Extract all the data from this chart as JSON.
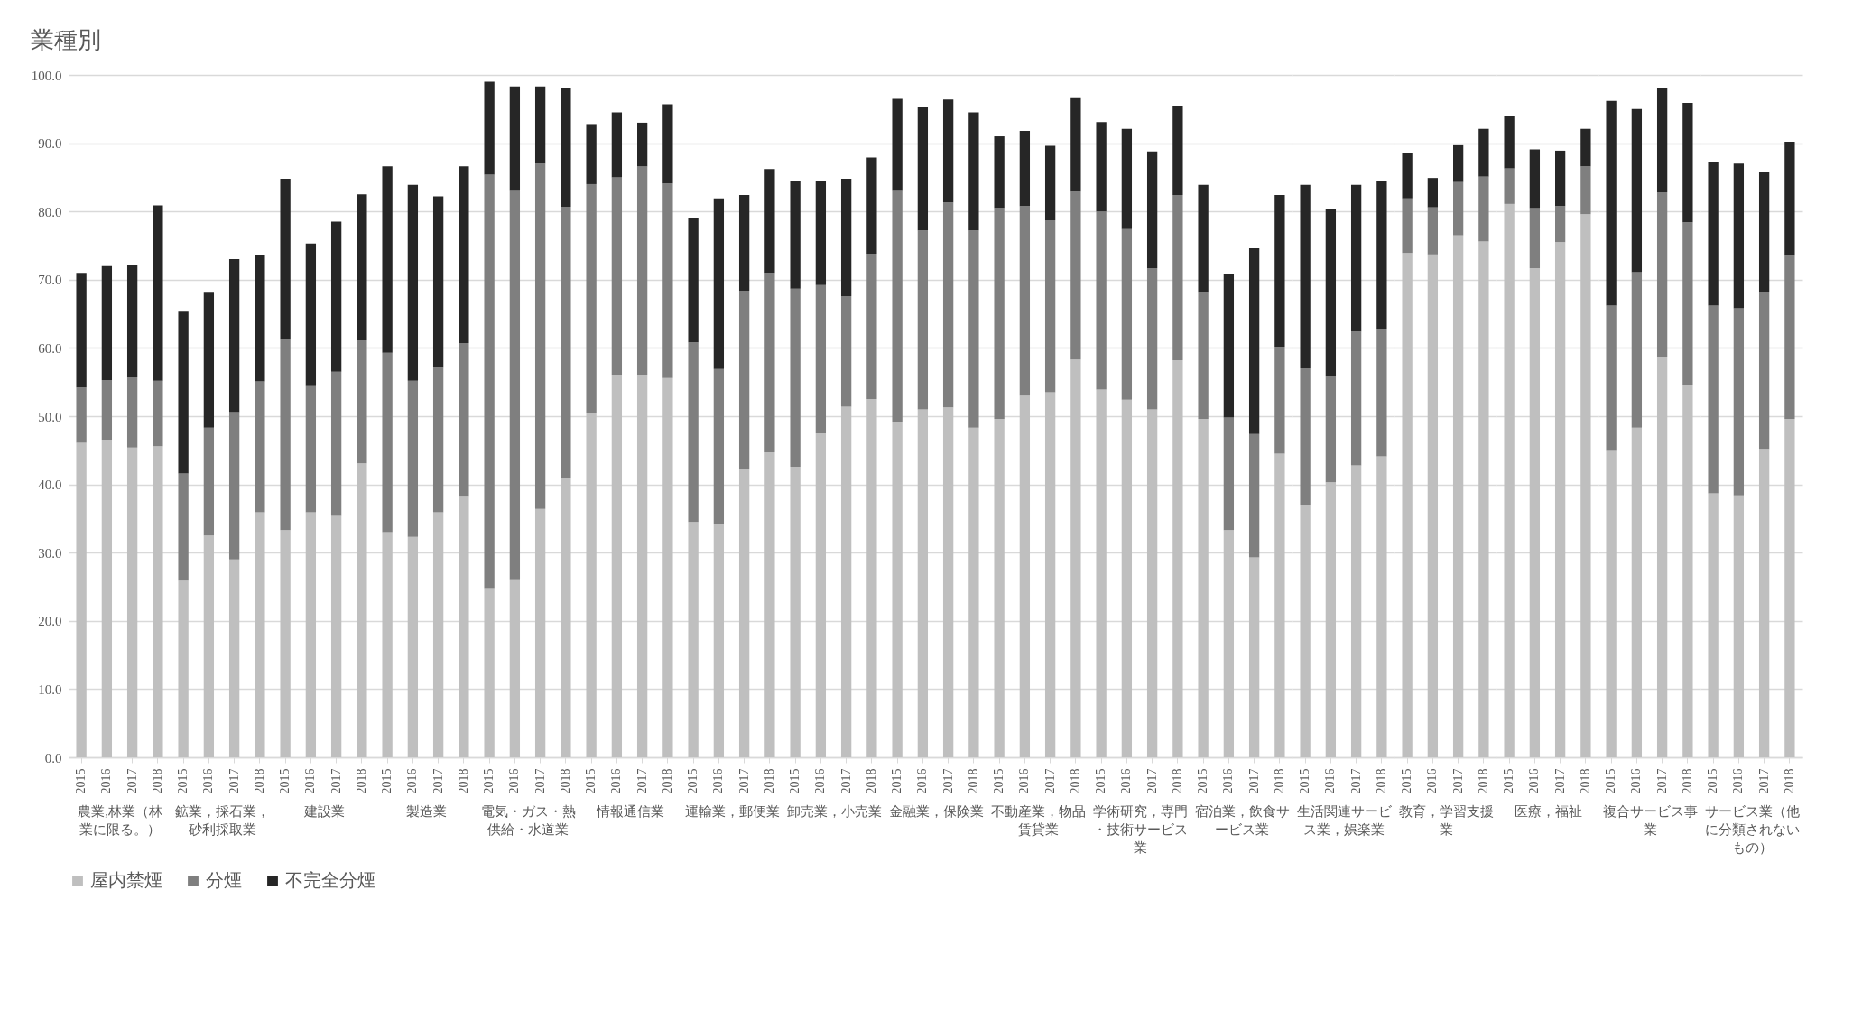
{
  "chart_data": [
    {
      "type": "bar",
      "stacked": true,
      "title": "業種別",
      "legend": "bottom",
      "grid": "y",
      "xlabel": "農業,林業（林業に限る。）",
      "categories": [
        "2015",
        "2016",
        "2017",
        "2018"
      ],
      "ylim": [
        0,
        100
      ],
      "yticks": [
        {
          "value": 0,
          "label": "0.0"
        },
        {
          "value": 10,
          "label": "10.0"
        },
        {
          "value": 20,
          "label": "20.0"
        },
        {
          "value": 30,
          "label": "30.0"
        },
        {
          "value": 40,
          "label": "40.0"
        },
        {
          "value": 50,
          "label": "50.0"
        },
        {
          "value": 60,
          "label": "60.0"
        },
        {
          "value": 70,
          "label": "70.0"
        },
        {
          "value": 80,
          "label": "80.0"
        },
        {
          "value": 90,
          "label": "90.0"
        },
        {
          "value": 100,
          "label": "100.0"
        }
      ],
      "series": [
        {
          "name": "屋内禁煙",
          "color": "#bfbfbf",
          "values": [
            46.1,
            46.5,
            45.4,
            45.6
          ]
        },
        {
          "name": "分煙",
          "color": "#7f7f7f",
          "values": [
            8.1,
            8.8,
            10.3,
            9.6
          ]
        },
        {
          "name": "不完全分煙",
          "color": "#262626",
          "values": [
            16.8,
            16.7,
            16.4,
            25.7
          ]
        }
      ]
    },
    {
      "type": "bar",
      "stacked": true,
      "grid": "y",
      "tick_labels": "x",
      "xlabel": "鉱業，採石業，砂利採取業",
      "categories": [
        "2015",
        "2016",
        "2017",
        "2018"
      ],
      "ylim": [
        0,
        100
      ],
      "series": [
        {
          "name": "屋内禁煙",
          "color": "#bfbfbf",
          "values": [
            25.9,
            32.5,
            29.0,
            35.9
          ]
        },
        {
          "name": "分煙",
          "color": "#7f7f7f",
          "values": [
            15.7,
            15.8,
            21.6,
            19.2
          ]
        },
        {
          "name": "不完全分煙",
          "color": "#262626",
          "values": [
            23.7,
            19.8,
            22.4,
            18.5
          ]
        }
      ]
    },
    {
      "type": "bar",
      "stacked": true,
      "grid": "y",
      "tick_labels": "x",
      "xlabel": "建設業",
      "categories": [
        "2015",
        "2016",
        "2017",
        "2018"
      ],
      "ylim": [
        0,
        100
      ],
      "series": [
        {
          "name": "屋内禁煙",
          "color": "#bfbfbf",
          "values": [
            33.3,
            35.9,
            35.4,
            43.1
          ]
        },
        {
          "name": "分煙",
          "color": "#7f7f7f",
          "values": [
            27.9,
            18.5,
            21.1,
            18.0
          ]
        },
        {
          "name": "不完全分煙",
          "color": "#262626",
          "values": [
            23.6,
            20.9,
            22.0,
            21.4
          ]
        }
      ]
    },
    {
      "type": "bar",
      "stacked": true,
      "grid": "y",
      "tick_labels": "x",
      "xlabel": "製造業",
      "categories": [
        "2015",
        "2016",
        "2017",
        "2018"
      ],
      "ylim": [
        0,
        100
      ],
      "series": [
        {
          "name": "屋内禁煙",
          "color": "#bfbfbf",
          "values": [
            33.0,
            32.3,
            35.9,
            38.2
          ]
        },
        {
          "name": "分煙",
          "color": "#7f7f7f",
          "values": [
            26.3,
            22.9,
            21.2,
            22.5
          ]
        },
        {
          "name": "不完全分煙",
          "color": "#262626",
          "values": [
            27.3,
            28.7,
            25.1,
            25.9
          ]
        }
      ]
    },
    {
      "type": "bar",
      "stacked": true,
      "grid": "y",
      "tick_labels": "x",
      "xlabel": "電気・ガス・熱供給・水道業",
      "categories": [
        "2015",
        "2016",
        "2017",
        "2018"
      ],
      "ylim": [
        0,
        100
      ],
      "series": [
        {
          "name": "屋内禁煙",
          "color": "#bfbfbf",
          "values": [
            24.8,
            26.1,
            36.4,
            40.9
          ]
        },
        {
          "name": "分煙",
          "color": "#7f7f7f",
          "values": [
            60.6,
            56.9,
            50.6,
            39.8
          ]
        },
        {
          "name": "不完全分煙",
          "color": "#262626",
          "values": [
            13.6,
            15.3,
            11.3,
            17.3
          ]
        }
      ]
    },
    {
      "type": "bar",
      "stacked": true,
      "grid": "y",
      "tick_labels": "x",
      "xlabel": "情報通信業",
      "categories": [
        "2015",
        "2016",
        "2017",
        "2018"
      ],
      "ylim": [
        0,
        100
      ],
      "series": [
        {
          "name": "屋内禁煙",
          "color": "#bfbfbf",
          "values": [
            50.4,
            56.1,
            56.1,
            55.6
          ]
        },
        {
          "name": "分煙",
          "color": "#7f7f7f",
          "values": [
            33.6,
            28.9,
            30.5,
            28.5
          ]
        },
        {
          "name": "不完全分煙",
          "color": "#262626",
          "values": [
            8.8,
            9.5,
            6.4,
            11.6
          ]
        }
      ]
    },
    {
      "type": "bar",
      "stacked": true,
      "grid": "y",
      "tick_labels": "x",
      "xlabel": "運輸業，郵便業",
      "categories": [
        "2015",
        "2016",
        "2017",
        "2018"
      ],
      "ylim": [
        0,
        100
      ],
      "series": [
        {
          "name": "屋内禁煙",
          "color": "#bfbfbf",
          "values": [
            34.5,
            34.2,
            42.2,
            44.7
          ]
        },
        {
          "name": "分煙",
          "color": "#7f7f7f",
          "values": [
            26.3,
            22.7,
            26.2,
            26.3
          ]
        },
        {
          "name": "不完全分煙",
          "color": "#262626",
          "values": [
            18.3,
            25.0,
            14.0,
            15.2
          ]
        }
      ]
    },
    {
      "type": "bar",
      "stacked": true,
      "grid": "y",
      "tick_labels": "x",
      "xlabel": "卸売業，小売業",
      "categories": [
        "2015",
        "2016",
        "2017",
        "2018"
      ],
      "ylim": [
        0,
        100
      ],
      "series": [
        {
          "name": "屋内禁煙",
          "color": "#bfbfbf",
          "values": [
            42.6,
            47.5,
            51.4,
            52.5
          ]
        },
        {
          "name": "分煙",
          "color": "#7f7f7f",
          "values": [
            26.1,
            21.7,
            16.2,
            21.3
          ]
        },
        {
          "name": "不完全分煙",
          "color": "#262626",
          "values": [
            15.7,
            15.3,
            17.2,
            14.1
          ]
        }
      ]
    },
    {
      "type": "bar",
      "stacked": true,
      "grid": "y",
      "tick_labels": "x",
      "xlabel": "金融業，保険業",
      "categories": [
        "2015",
        "2016",
        "2017",
        "2018"
      ],
      "ylim": [
        0,
        100
      ],
      "series": [
        {
          "name": "屋内禁煙",
          "color": "#bfbfbf",
          "values": [
            49.2,
            51.0,
            51.3,
            48.3
          ]
        },
        {
          "name": "分煙",
          "color": "#7f7f7f",
          "values": [
            33.8,
            26.2,
            30.0,
            28.9
          ]
        },
        {
          "name": "不完全分煙",
          "color": "#262626",
          "values": [
            13.5,
            18.1,
            15.1,
            17.3
          ]
        }
      ]
    },
    {
      "type": "bar",
      "stacked": true,
      "grid": "y",
      "tick_labels": "x",
      "xlabel": "不動産業，物品賃貸業",
      "categories": [
        "2015",
        "2016",
        "2017",
        "2018"
      ],
      "ylim": [
        0,
        100
      ],
      "series": [
        {
          "name": "屋内禁煙",
          "color": "#bfbfbf",
          "values": [
            49.6,
            53.0,
            53.5,
            58.3
          ]
        },
        {
          "name": "分煙",
          "color": "#7f7f7f",
          "values": [
            30.9,
            27.8,
            25.2,
            24.6
          ]
        },
        {
          "name": "不完全分煙",
          "color": "#262626",
          "values": [
            10.5,
            11.0,
            10.9,
            13.7
          ]
        }
      ]
    },
    {
      "type": "bar",
      "stacked": true,
      "grid": "y",
      "tick_labels": "x",
      "xlabel": "学術研究，専門・技術サービス業",
      "categories": [
        "2015",
        "2016",
        "2017",
        "2018"
      ],
      "ylim": [
        0,
        100
      ],
      "series": [
        {
          "name": "屋内禁煙",
          "color": "#bfbfbf",
          "values": [
            53.9,
            52.4,
            51.0,
            58.2
          ]
        },
        {
          "name": "分煙",
          "color": "#7f7f7f",
          "values": [
            26.1,
            25.0,
            20.7,
            24.2
          ]
        },
        {
          "name": "不完全分煙",
          "color": "#262626",
          "values": [
            13.1,
            14.7,
            17.1,
            13.1
          ]
        }
      ]
    },
    {
      "type": "bar",
      "stacked": true,
      "grid": "y",
      "tick_labels": "x",
      "xlabel": "宿泊業，飲食サービス業",
      "categories": [
        "2015",
        "2016",
        "2017",
        "2018"
      ],
      "ylim": [
        0,
        100
      ],
      "series": [
        {
          "name": "屋内禁煙",
          "color": "#bfbfbf",
          "values": [
            49.6,
            33.3,
            29.3,
            44.5
          ]
        },
        {
          "name": "分煙",
          "color": "#7f7f7f",
          "values": [
            18.5,
            16.5,
            18.1,
            15.7
          ]
        },
        {
          "name": "不完全分煙",
          "color": "#262626",
          "values": [
            15.8,
            21.0,
            27.2,
            22.2
          ]
        }
      ]
    },
    {
      "type": "bar",
      "stacked": true,
      "grid": "y",
      "tick_labels": "x",
      "xlabel": "生活関連サービス業，娯楽業",
      "categories": [
        "2015",
        "2016",
        "2017",
        "2018"
      ],
      "ylim": [
        0,
        100
      ],
      "series": [
        {
          "name": "屋内禁煙",
          "color": "#bfbfbf",
          "values": [
            36.9,
            40.3,
            42.8,
            44.1
          ]
        },
        {
          "name": "分煙",
          "color": "#7f7f7f",
          "values": [
            20.1,
            15.6,
            19.6,
            18.6
          ]
        },
        {
          "name": "不完全分煙",
          "color": "#262626",
          "values": [
            26.9,
            24.4,
            21.5,
            21.7
          ]
        }
      ]
    },
    {
      "type": "bar",
      "stacked": true,
      "grid": "y",
      "tick_labels": "x",
      "xlabel": "教育，学習支援業",
      "categories": [
        "2015",
        "2016",
        "2017",
        "2018"
      ],
      "ylim": [
        0,
        100
      ],
      "series": [
        {
          "name": "屋内禁煙",
          "color": "#bfbfbf",
          "values": [
            73.9,
            73.7,
            76.5,
            75.6
          ]
        },
        {
          "name": "分煙",
          "color": "#7f7f7f",
          "values": [
            8.0,
            6.9,
            7.8,
            9.5
          ]
        },
        {
          "name": "不完全分煙",
          "color": "#262626",
          "values": [
            6.7,
            4.3,
            5.4,
            7.0
          ]
        }
      ]
    },
    {
      "type": "bar",
      "stacked": true,
      "grid": "y",
      "tick_labels": "x",
      "xlabel": "医療，福祉",
      "categories": [
        "2015",
        "2016",
        "2017",
        "2018"
      ],
      "ylim": [
        0,
        100
      ],
      "series": [
        {
          "name": "屋内禁煙",
          "color": "#bfbfbf",
          "values": [
            81.1,
            71.7,
            75.5,
            79.6
          ]
        },
        {
          "name": "分煙",
          "color": "#7f7f7f",
          "values": [
            5.2,
            8.8,
            5.3,
            7.0
          ]
        },
        {
          "name": "不完全分煙",
          "color": "#262626",
          "values": [
            7.7,
            8.6,
            8.1,
            5.5
          ]
        }
      ]
    },
    {
      "type": "bar",
      "stacked": true,
      "grid": "y",
      "tick_labels": "x",
      "xlabel": "複合サービス事業",
      "categories": [
        "2015",
        "2016",
        "2017",
        "2018"
      ],
      "ylim": [
        0,
        100
      ],
      "series": [
        {
          "name": "屋内禁煙",
          "color": "#bfbfbf",
          "values": [
            44.9,
            48.3,
            58.6,
            54.6
          ]
        },
        {
          "name": "分煙",
          "color": "#7f7f7f",
          "values": [
            21.3,
            22.8,
            24.2,
            23.8
          ]
        },
        {
          "name": "不完全分煙",
          "color": "#262626",
          "values": [
            30.0,
            23.9,
            15.2,
            17.5
          ]
        }
      ]
    },
    {
      "type": "bar",
      "stacked": true,
      "grid": "y",
      "tick_labels": "x",
      "xlabel": "サービス業（他に分類されないもの）",
      "categories": [
        "2015",
        "2016",
        "2017",
        "2018"
      ],
      "ylim": [
        0,
        100
      ],
      "series": [
        {
          "name": "屋内禁煙",
          "color": "#bfbfbf",
          "values": [
            38.7,
            38.4,
            45.2,
            49.6
          ]
        },
        {
          "name": "分煙",
          "color": "#7f7f7f",
          "values": [
            27.5,
            27.4,
            23.0,
            23.9
          ]
        },
        {
          "name": "不完全分煙",
          "color": "#262626",
          "values": [
            21.0,
            21.2,
            17.6,
            16.7
          ]
        }
      ]
    }
  ]
}
